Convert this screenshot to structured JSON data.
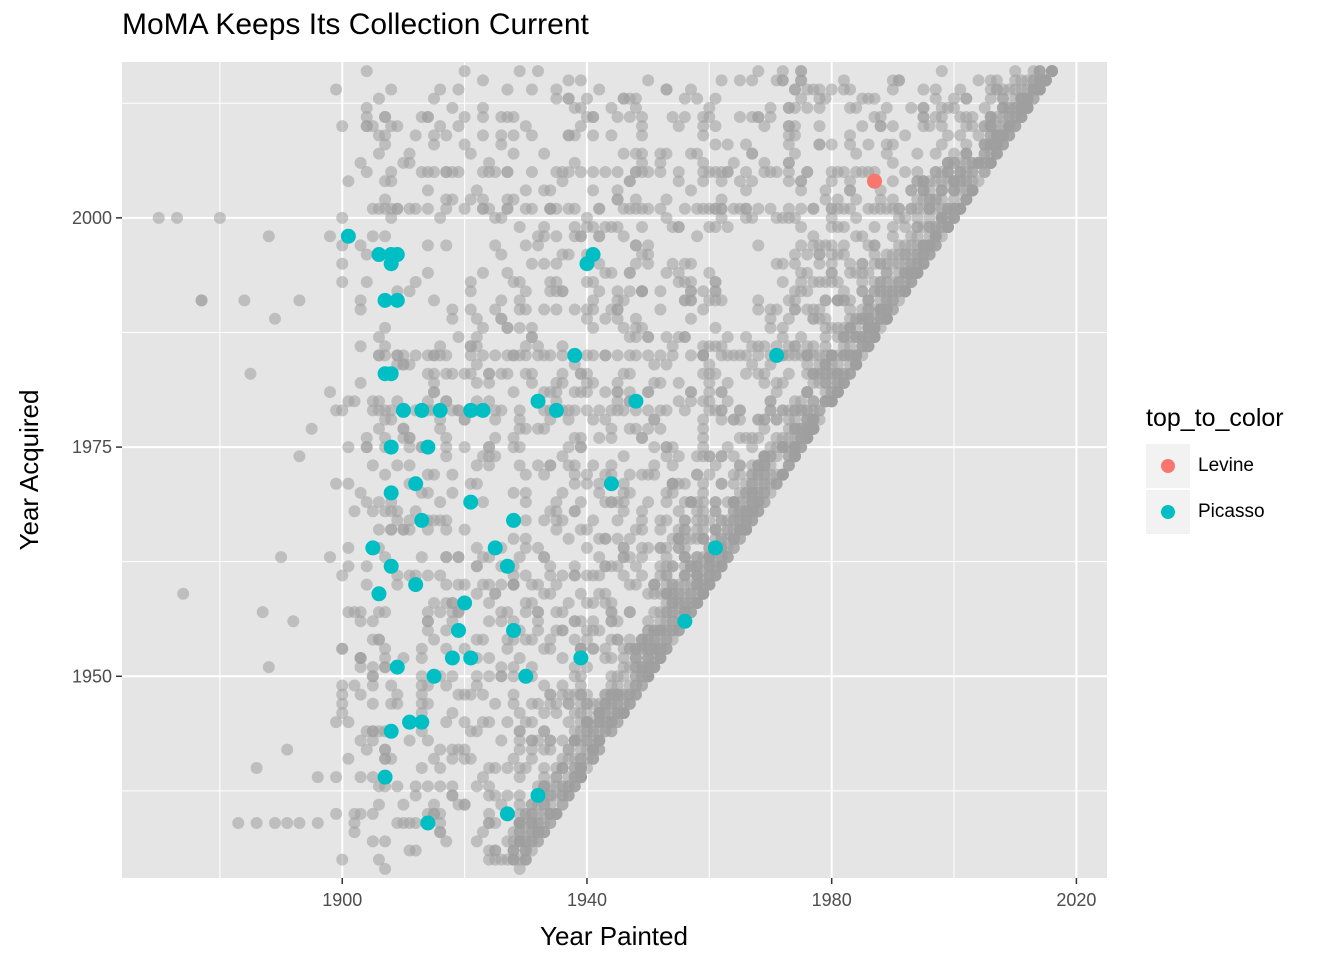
{
  "chart_data": {
    "type": "scatter",
    "title": "MoMA Keeps Its Collection Current",
    "xlabel": "Year Painted",
    "ylabel": "Year Acquired",
    "xlim": [
      1864,
      2025
    ],
    "ylim": [
      1928,
      2017
    ],
    "x_ticks": [
      1900,
      1940,
      1980,
      2020
    ],
    "y_ticks": [
      1950,
      1975,
      2000
    ],
    "grid": true,
    "legend_title": "top_to_color",
    "legend_position": "right",
    "colors": {
      "background": "#e5e5e5",
      "grid": "#ffffff",
      "other": "#9e9e9e",
      "Levine": "#f8766d",
      "Picasso": "#00bfc4"
    },
    "series": [
      {
        "name": "Levine",
        "points": [
          [
            1987,
            2004
          ]
        ]
      },
      {
        "name": "Picasso",
        "points": [
          [
            1901,
            1998
          ],
          [
            1906,
            1996
          ],
          [
            1908,
            1996
          ],
          [
            1909,
            1996
          ],
          [
            1908,
            1995
          ],
          [
            1907,
            1991
          ],
          [
            1909,
            1991
          ],
          [
            1907,
            1983
          ],
          [
            1908,
            1983
          ],
          [
            1910,
            1979
          ],
          [
            1913,
            1979
          ],
          [
            1916,
            1979
          ],
          [
            1921,
            1979
          ],
          [
            1923,
            1979
          ],
          [
            1908,
            1975
          ],
          [
            1914,
            1975
          ],
          [
            1908,
            1970
          ],
          [
            1912,
            1971
          ],
          [
            1913,
            1967
          ],
          [
            1921,
            1969
          ],
          [
            1928,
            1967
          ],
          [
            1905,
            1964
          ],
          [
            1908,
            1962
          ],
          [
            1925,
            1964
          ],
          [
            1927,
            1962
          ],
          [
            1912,
            1960
          ],
          [
            1906,
            1959
          ],
          [
            1920,
            1958
          ],
          [
            1919,
            1955
          ],
          [
            1928,
            1955
          ],
          [
            1918,
            1952
          ],
          [
            1921,
            1952
          ],
          [
            1939,
            1952
          ],
          [
            1909,
            1951
          ],
          [
            1915,
            1950
          ],
          [
            1930,
            1950
          ],
          [
            1911,
            1945
          ],
          [
            1913,
            1945
          ],
          [
            1908,
            1944
          ],
          [
            1907,
            1939
          ],
          [
            1932,
            1937
          ],
          [
            1927,
            1935
          ],
          [
            1914,
            1934
          ],
          [
            1932,
            1980
          ],
          [
            1935,
            1979
          ],
          [
            1938,
            1985
          ],
          [
            1940,
            1995
          ],
          [
            1941,
            1996
          ],
          [
            1944,
            1971
          ],
          [
            1948,
            1980
          ],
          [
            1956,
            1956
          ],
          [
            1961,
            1964
          ],
          [
            1971,
            1985
          ]
        ]
      }
    ]
  }
}
